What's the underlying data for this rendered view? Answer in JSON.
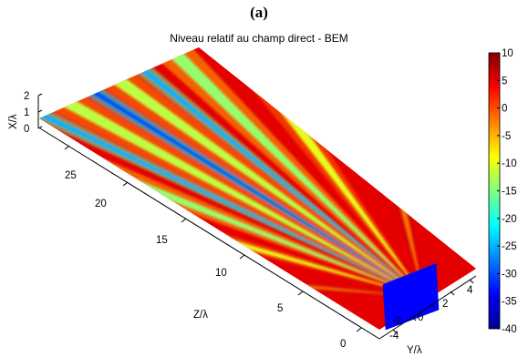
{
  "figure": {
    "panel_label": "(a)",
    "title": "Niveau relatif au champ direct - BEM"
  },
  "chart_data": {
    "type": "heatmap",
    "title": "Niveau relatif au champ direct - BEM",
    "xlabel": "Y/λ",
    "ylabel": "Z/λ",
    "zlabel": "X/λ",
    "x_ticks": [
      "-4",
      "-2",
      "0",
      "2",
      "4"
    ],
    "y_ticks": [
      "0",
      "5",
      "10",
      "15",
      "20",
      "25"
    ],
    "z_ticks": [
      "0",
      "1",
      "2"
    ],
    "xlim": [
      -5,
      5
    ],
    "ylim": [
      0,
      29
    ],
    "zlim": [
      0,
      2
    ],
    "colorbar": {
      "ticks": [
        "10",
        "5",
        "0",
        "-5",
        "-10",
        "-15",
        "-20",
        "-25",
        "-30",
        "-35",
        "-40"
      ],
      "range": [
        -40,
        10
      ],
      "colormap": "jet"
    },
    "source_box": {
      "y_range": [
        -2.5,
        2.5
      ],
      "z": 0,
      "x_range": [
        0,
        2
      ],
      "color": "#0000ff"
    },
    "lobes": [
      {
        "angle_deg": 0,
        "level_db": -30
      },
      {
        "angle_deg": 4.5,
        "level_db": -12
      },
      {
        "angle_deg": -4.5,
        "level_db": -12
      },
      {
        "angle_deg": 9,
        "level_db": -25
      },
      {
        "angle_deg": -9,
        "level_db": -25
      },
      {
        "angle_deg": 15,
        "level_db": -14
      },
      {
        "angle_deg": -15,
        "level_db": -14
      },
      {
        "angle_deg": 24,
        "level_db": -10
      },
      {
        "angle_deg": -24,
        "level_db": -10
      },
      {
        "angle_deg": 42,
        "level_db": -2
      },
      {
        "angle_deg": -42,
        "level_db": -2
      }
    ],
    "background_level_db": 5,
    "grid": false
  }
}
